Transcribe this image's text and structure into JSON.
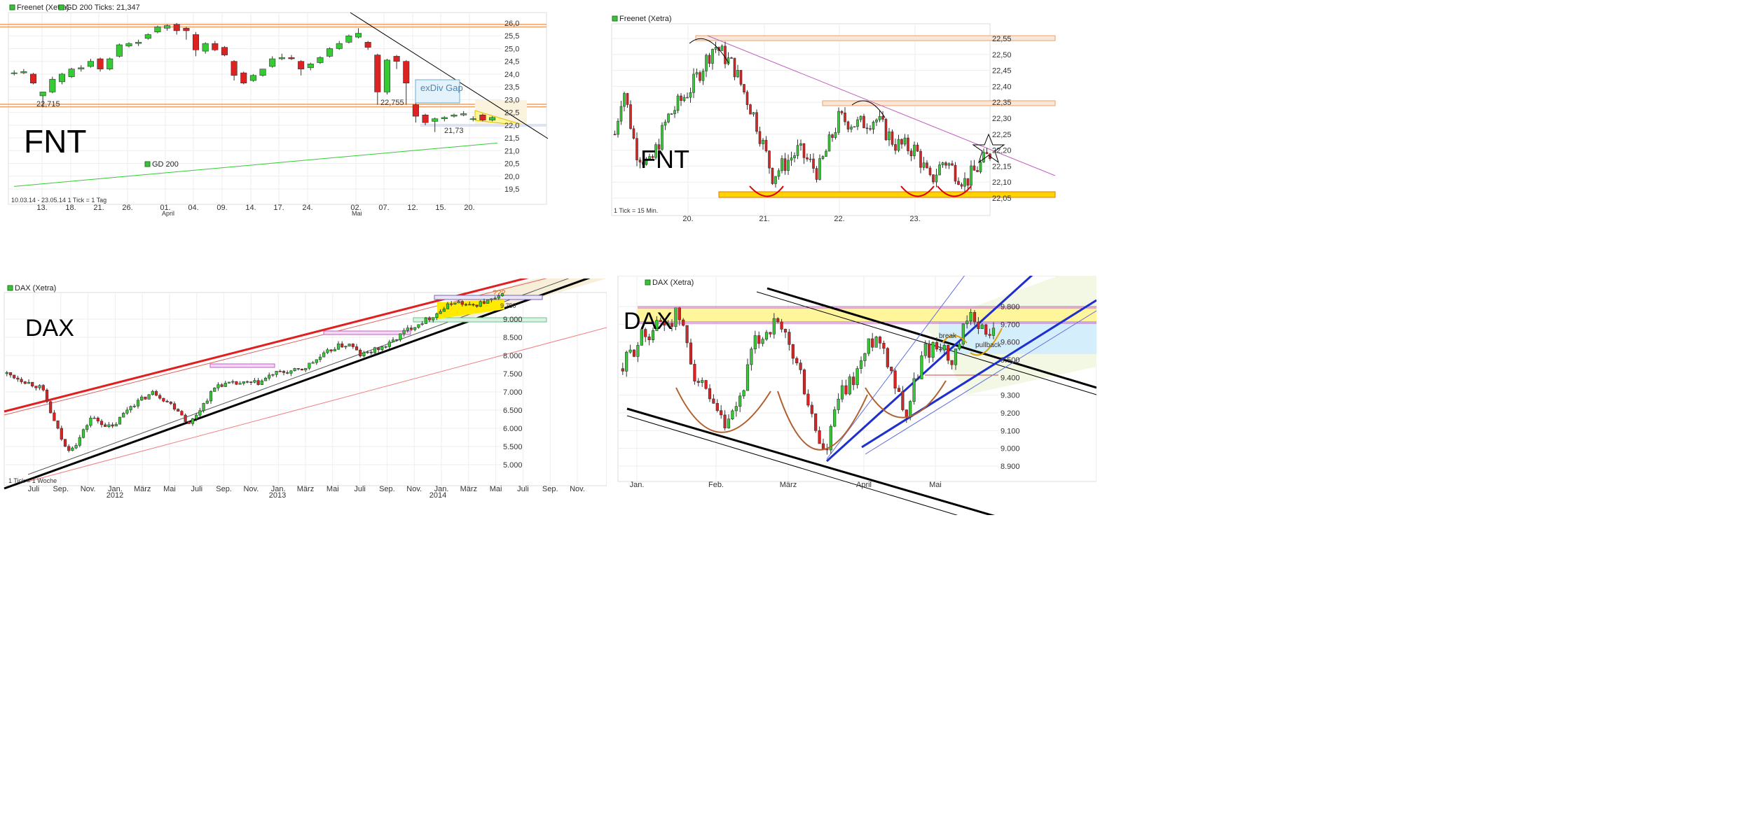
{
  "chart_data": [
    {
      "type": "candlestick",
      "legend": [
        "Freenet (Xetra)",
        "GD 200 Ticks: 21,347"
      ],
      "label": "FNT",
      "yticks": [
        "26,0",
        "25,5",
        "25,0",
        "24,5",
        "24,0",
        "23,5",
        "23,0",
        "22,5",
        "22,0",
        "21,5",
        "21,0",
        "20,5",
        "20,0",
        "19,5"
      ],
      "ylim": [
        19.2,
        26.3
      ],
      "xticks": [
        "13.",
        "18.",
        "21.",
        "26.",
        "01.",
        "04.",
        "09.",
        "14.",
        "17.",
        "24.",
        "02.",
        "07.",
        "12.",
        "15.",
        "20."
      ],
      "xsub": [
        "April",
        "Mai"
      ],
      "footer": "10.03.14 - 23.05.14   1 Tick = 1 Tag",
      "annotations": [
        "22,715",
        "22,755",
        "21,73",
        "exDiv Gap"
      ],
      "ma_label": "GD 200",
      "ma_start": 19.6,
      "ma_end": 21.3,
      "candles": [
        [
          24.05,
          24.15,
          23.95,
          24.05
        ],
        [
          24.05,
          24.2,
          24.0,
          24.1
        ],
        [
          24.0,
          24.05,
          23.6,
          23.65
        ],
        [
          23.15,
          23.3,
          22.7,
          23.3
        ],
        [
          23.3,
          23.9,
          23.25,
          23.8
        ],
        [
          23.7,
          24.05,
          23.6,
          24.0
        ],
        [
          23.9,
          24.25,
          23.85,
          24.2
        ],
        [
          24.2,
          24.35,
          24.1,
          24.25
        ],
        [
          24.3,
          24.6,
          24.25,
          24.5
        ],
        [
          24.6,
          24.65,
          24.1,
          24.2
        ],
        [
          24.2,
          24.65,
          24.15,
          24.6
        ],
        [
          24.7,
          25.2,
          24.65,
          25.15
        ],
        [
          25.1,
          25.25,
          25.05,
          25.2
        ],
        [
          25.2,
          25.35,
          25.1,
          25.25
        ],
        [
          25.4,
          25.6,
          25.35,
          25.55
        ],
        [
          25.65,
          25.9,
          25.6,
          25.85
        ],
        [
          25.8,
          25.95,
          25.7,
          25.9
        ],
        [
          25.95,
          26.0,
          25.55,
          25.7
        ],
        [
          25.8,
          25.85,
          25.35,
          25.7
        ],
        [
          25.55,
          25.65,
          24.7,
          24.95
        ],
        [
          24.9,
          25.25,
          24.8,
          25.2
        ],
        [
          25.2,
          25.3,
          24.9,
          24.95
        ],
        [
          25.05,
          25.1,
          24.7,
          24.75
        ],
        [
          24.5,
          24.55,
          23.75,
          23.95
        ],
        [
          24.05,
          24.1,
          23.6,
          23.65
        ],
        [
          23.75,
          24.0,
          23.7,
          23.95
        ],
        [
          23.95,
          24.2,
          23.9,
          24.2
        ],
        [
          24.3,
          24.7,
          24.25,
          24.6
        ],
        [
          24.6,
          24.8,
          24.55,
          24.65
        ],
        [
          24.65,
          24.75,
          24.55,
          24.6
        ],
        [
          24.5,
          24.55,
          23.95,
          24.2
        ],
        [
          24.25,
          24.45,
          24.15,
          24.4
        ],
        [
          24.45,
          24.7,
          24.4,
          24.65
        ],
        [
          24.7,
          25.05,
          24.65,
          25.0
        ],
        [
          25.0,
          25.3,
          24.95,
          25.2
        ],
        [
          25.25,
          25.55,
          25.2,
          25.5
        ],
        [
          25.45,
          25.8,
          25.4,
          25.6
        ],
        [
          25.25,
          25.3,
          24.95,
          25.05
        ],
        [
          24.75,
          24.8,
          22.8,
          23.3
        ],
        [
          23.3,
          24.6,
          23.2,
          24.55
        ],
        [
          24.7,
          24.75,
          24.2,
          24.5
        ],
        [
          24.5,
          24.55,
          22.8,
          23.65
        ],
        [
          22.8,
          22.9,
          22.1,
          22.35
        ],
        [
          22.4,
          22.45,
          22.0,
          22.1
        ],
        [
          22.15,
          22.3,
          21.73,
          22.25
        ],
        [
          22.25,
          22.35,
          22.15,
          22.3
        ],
        [
          22.35,
          22.45,
          22.3,
          22.4
        ],
        [
          22.4,
          22.55,
          22.35,
          22.45
        ],
        [
          22.25,
          22.35,
          22.15,
          22.25
        ],
        [
          22.4,
          22.45,
          22.15,
          22.2
        ],
        [
          22.2,
          22.35,
          22.15,
          22.3
        ]
      ]
    },
    {
      "type": "candlestick",
      "legend": [
        "Freenet (Xetra)"
      ],
      "label": "FNT",
      "yticks": [
        "22,55",
        "22,50",
        "22,45",
        "22,40",
        "22,35",
        "22,30",
        "22,25",
        "22,20",
        "22,15",
        "22,10",
        "22,05"
      ],
      "ylim": [
        22.03,
        22.58
      ],
      "xticks": [
        "20.",
        "21.",
        "22.",
        "23."
      ],
      "footer": "1 Tick = 15 Min."
    },
    {
      "type": "candlestick",
      "legend": [
        "DAX (Xetra)"
      ],
      "label": "DAX",
      "yticks": [
        "9.000",
        "8.500",
        "8.000",
        "7.500",
        "7.000",
        "6.500",
        "6.000",
        "5.500",
        "5.000"
      ],
      "ylim": [
        4600,
        9900
      ],
      "xticks": [
        "Juli",
        "Sep.",
        "Nov.",
        "Jan.",
        "März",
        "Mai",
        "Juli",
        "Sep.",
        "Nov.",
        "Jan.",
        "März",
        "Mai",
        "Juli",
        "Sep.",
        "Nov.",
        "Jan.",
        "März",
        "Mai",
        "Juli",
        "Sep.",
        "Nov."
      ],
      "xsub": [
        "2012",
        "2013",
        "2014"
      ],
      "annotations": [
        "???",
        "9.750"
      ],
      "footer": "1 Tick = 1 Woche"
    },
    {
      "type": "candlestick",
      "legend": [
        "DAX (Xetra)"
      ],
      "label": "DAX",
      "yticks": [
        "9.800",
        "9.700",
        "9.600",
        "9.500",
        "9.400",
        "9.300",
        "9.200",
        "9.100",
        "9.000",
        "8.900"
      ],
      "ylim": [
        8840,
        9900
      ],
      "xticks": [
        "Jan.",
        "Feb.",
        "März",
        "April",
        "Mai"
      ],
      "annotations": [
        "break",
        "pullback"
      ]
    }
  ]
}
